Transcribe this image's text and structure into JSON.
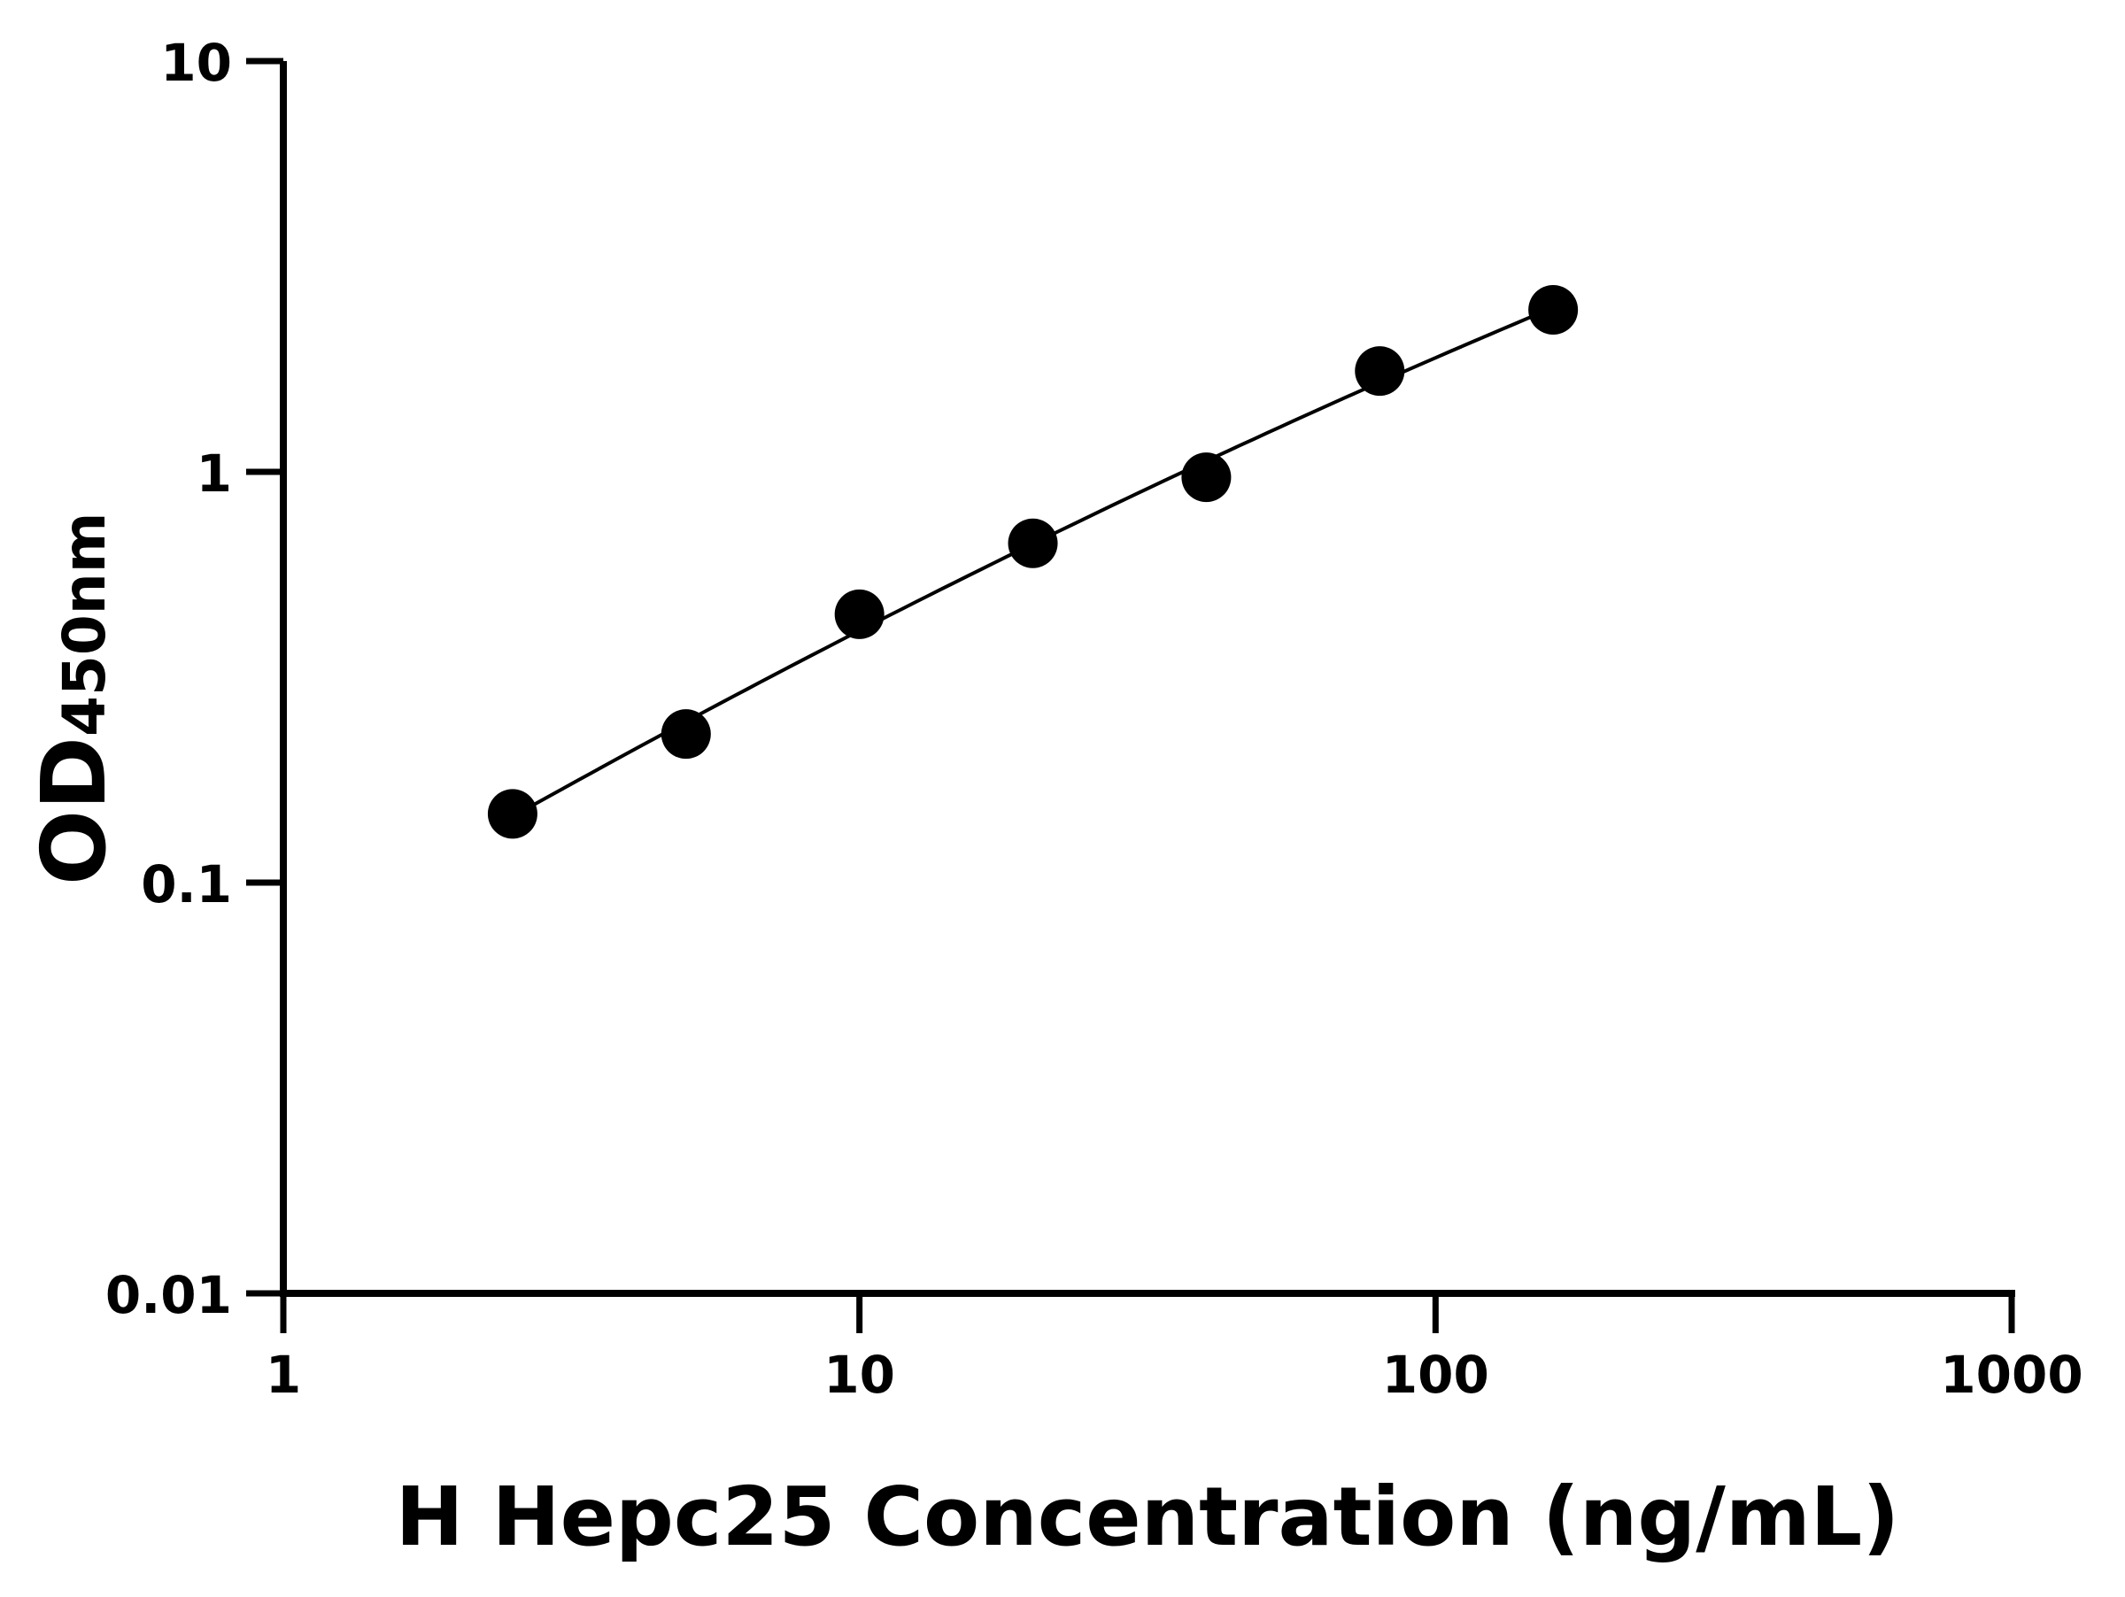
{
  "chart_data": {
    "type": "scatter",
    "xlabel": "H Hepc25 Concentration (ng/mL)",
    "ylabel_main": "OD",
    "ylabel_sub": "450nm",
    "x_scale": "log",
    "y_scale": "log",
    "xlim": [
      1,
      1000
    ],
    "ylim": [
      0.01,
      10
    ],
    "x_ticks": [
      "1",
      "10",
      "100",
      "1000"
    ],
    "y_ticks": [
      "0.01",
      "0.1",
      "1",
      "10"
    ],
    "grid": false,
    "fit_curve": true,
    "points": [
      {
        "x": 2.5,
        "y": 0.147
      },
      {
        "x": 5,
        "y": 0.23
      },
      {
        "x": 10,
        "y": 0.45
      },
      {
        "x": 20,
        "y": 0.67
      },
      {
        "x": 40,
        "y": 0.97
      },
      {
        "x": 80,
        "y": 1.76
      },
      {
        "x": 160,
        "y": 2.48
      }
    ],
    "colors": {
      "marker": "#000000",
      "line": "#000000",
      "axis": "#000000"
    }
  }
}
